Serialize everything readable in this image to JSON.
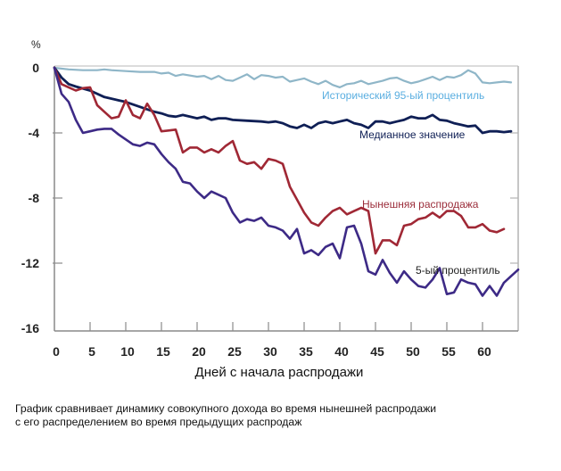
{
  "chart_data": {
    "type": "line",
    "title": "",
    "xlabel": "Дней с начала распродажи",
    "ylabel": "%",
    "xlim": [
      0,
      65
    ],
    "ylim": [
      -16,
      0
    ],
    "xticks": [
      0,
      5,
      10,
      15,
      20,
      25,
      30,
      35,
      40,
      45,
      50,
      55,
      60
    ],
    "yticks": [
      0,
      -4,
      -8,
      -12,
      -16
    ],
    "grid": false,
    "legend": "inline labels",
    "series": [
      {
        "name": "Исторический 95-ый процентиль",
        "color": "#8fb6c8",
        "label_color": "#5aaee0",
        "x": [
          0,
          2,
          4,
          6,
          7,
          8,
          10,
          12,
          14,
          15,
          16,
          17,
          18,
          20,
          21,
          22,
          23,
          24,
          25,
          26,
          27,
          28,
          29,
          30,
          31,
          32,
          33,
          34,
          35,
          36,
          37,
          38,
          39,
          40,
          41,
          42,
          43,
          44,
          45,
          46,
          47,
          48,
          49,
          50,
          51,
          52,
          53,
          54,
          55,
          56,
          57,
          58,
          59,
          60,
          61,
          62,
          63,
          64
        ],
        "values": [
          0,
          -0.1,
          -0.15,
          -0.15,
          -0.1,
          -0.15,
          -0.2,
          -0.25,
          -0.25,
          -0.35,
          -0.3,
          -0.5,
          -0.4,
          -0.55,
          -0.5,
          -0.7,
          -0.5,
          -0.75,
          -0.8,
          -0.6,
          -0.4,
          -0.7,
          -0.45,
          -0.5,
          -0.6,
          -0.55,
          -0.85,
          -0.75,
          -0.65,
          -0.85,
          -1.0,
          -0.8,
          -1.05,
          -1.2,
          -1.0,
          -0.95,
          -0.8,
          -1.0,
          -0.9,
          -0.8,
          -0.65,
          -0.6,
          -0.8,
          -0.95,
          -0.85,
          -0.7,
          -0.55,
          -0.75,
          -0.55,
          -0.6,
          -0.45,
          -0.15,
          -0.35,
          -0.9,
          -0.95,
          -0.9,
          -0.85,
          -0.9
        ]
      },
      {
        "name": "Медианное значение",
        "color": "#0f1f55",
        "label_color": "#0f1f55",
        "x": [
          0,
          1,
          2,
          3,
          5,
          7,
          9,
          10,
          12,
          14,
          15,
          16,
          17,
          18,
          20,
          21,
          22,
          23,
          24,
          25,
          27,
          29,
          30,
          31,
          32,
          33,
          34,
          35,
          36,
          37,
          38,
          39,
          40,
          41,
          42,
          43,
          44,
          45,
          46,
          47,
          48,
          49,
          50,
          51,
          52,
          53,
          54,
          55,
          56,
          57,
          58,
          59,
          60,
          61,
          62,
          63,
          64
        ],
        "values": [
          0,
          -0.6,
          -1.0,
          -1.15,
          -1.4,
          -1.8,
          -2.0,
          -2.1,
          -2.4,
          -2.7,
          -2.8,
          -2.95,
          -3.0,
          -2.9,
          -3.1,
          -3.0,
          -3.2,
          -3.1,
          -3.1,
          -3.2,
          -3.25,
          -3.3,
          -3.35,
          -3.3,
          -3.4,
          -3.6,
          -3.7,
          -3.5,
          -3.7,
          -3.4,
          -3.3,
          -3.4,
          -3.3,
          -3.2,
          -3.4,
          -3.5,
          -3.7,
          -3.3,
          -3.3,
          -3.4,
          -3.3,
          -3.2,
          -3.0,
          -3.1,
          -3.1,
          -2.9,
          -3.2,
          -3.25,
          -3.4,
          -3.5,
          -3.6,
          -3.55,
          -4.0,
          -3.9,
          -3.9,
          -3.95,
          -3.9
        ]
      },
      {
        "name": "Нынешняя распродажа",
        "color": "#a02835",
        "label_color": "#9b2d3a",
        "x": [
          0,
          1,
          2,
          3,
          4,
          5,
          6,
          7,
          8,
          9,
          10,
          11,
          12,
          13,
          14,
          15,
          16,
          17,
          18,
          19,
          20,
          21,
          22,
          23,
          24,
          25,
          26,
          27,
          28,
          29,
          30,
          31,
          32,
          33,
          34,
          35,
          36,
          37,
          38,
          39,
          40,
          41,
          42,
          43,
          44,
          45,
          46,
          47,
          48,
          49,
          50,
          51,
          52,
          53,
          54,
          55,
          56,
          57,
          58,
          59,
          60,
          61,
          62,
          63
        ],
        "values": [
          0,
          -1.0,
          -1.2,
          -1.4,
          -1.25,
          -1.2,
          -2.3,
          -2.7,
          -3.1,
          -3.0,
          -2.0,
          -2.9,
          -3.1,
          -2.2,
          -2.9,
          -3.9,
          -3.85,
          -3.8,
          -5.2,
          -4.9,
          -4.9,
          -5.2,
          -5.0,
          -5.2,
          -4.8,
          -4.5,
          -5.7,
          -5.9,
          -5.8,
          -6.2,
          -5.6,
          -5.7,
          -5.9,
          -7.3,
          -8.1,
          -8.9,
          -9.5,
          -9.7,
          -9.2,
          -8.8,
          -8.6,
          -9.0,
          -8.8,
          -8.6,
          -8.8,
          -11.4,
          -10.6,
          -10.6,
          -10.9,
          -9.7,
          -9.6,
          -9.3,
          -9.2,
          -8.9,
          -9.2,
          -8.8,
          -8.8,
          -9.1,
          -9.8,
          -9.8,
          -9.6,
          -10.0,
          -10.1,
          -9.9
        ]
      },
      {
        "name": "5-ый процентиль",
        "color": "#3d2a86",
        "label_color": "#222222",
        "x": [
          0,
          1,
          2,
          3,
          4,
          5,
          6,
          7,
          8,
          9,
          10,
          11,
          12,
          13,
          14,
          15,
          16,
          17,
          18,
          19,
          20,
          21,
          22,
          23,
          24,
          25,
          26,
          27,
          28,
          29,
          30,
          31,
          32,
          33,
          34,
          35,
          36,
          37,
          38,
          39,
          40,
          41,
          42,
          43,
          44,
          45,
          46,
          47,
          48,
          49,
          50,
          51,
          52,
          53,
          54,
          55,
          56,
          57,
          58,
          59,
          60,
          61,
          62,
          63,
          64,
          65
        ],
        "values": [
          0,
          -1.6,
          -2.1,
          -3.2,
          -4.0,
          -3.9,
          -3.8,
          -3.75,
          -3.75,
          -4.1,
          -4.4,
          -4.7,
          -4.8,
          -4.6,
          -4.7,
          -5.3,
          -5.8,
          -6.2,
          -7.0,
          -7.1,
          -7.6,
          -8.0,
          -7.6,
          -7.8,
          -8.0,
          -8.9,
          -9.5,
          -9.3,
          -9.4,
          -9.2,
          -9.7,
          -9.8,
          -10.0,
          -10.5,
          -9.9,
          -11.4,
          -11.2,
          -11.5,
          -11.0,
          -10.8,
          -11.7,
          -9.8,
          -9.7,
          -10.8,
          -12.5,
          -12.7,
          -11.8,
          -12.6,
          -13.2,
          -12.5,
          -13.0,
          -13.4,
          -13.5,
          -13.0,
          -12.3,
          -13.9,
          -13.8,
          -13.0,
          -13.2,
          -13.3,
          -14.0,
          -13.4,
          -14.0,
          -13.2,
          -12.8,
          -12.4
        ]
      }
    ]
  },
  "caption": {
    "line1": "График сравнивает динамику совокупного дохода во время нынешней распродажи",
    "line2": "с его распределением во время предыдущих распродаж"
  }
}
